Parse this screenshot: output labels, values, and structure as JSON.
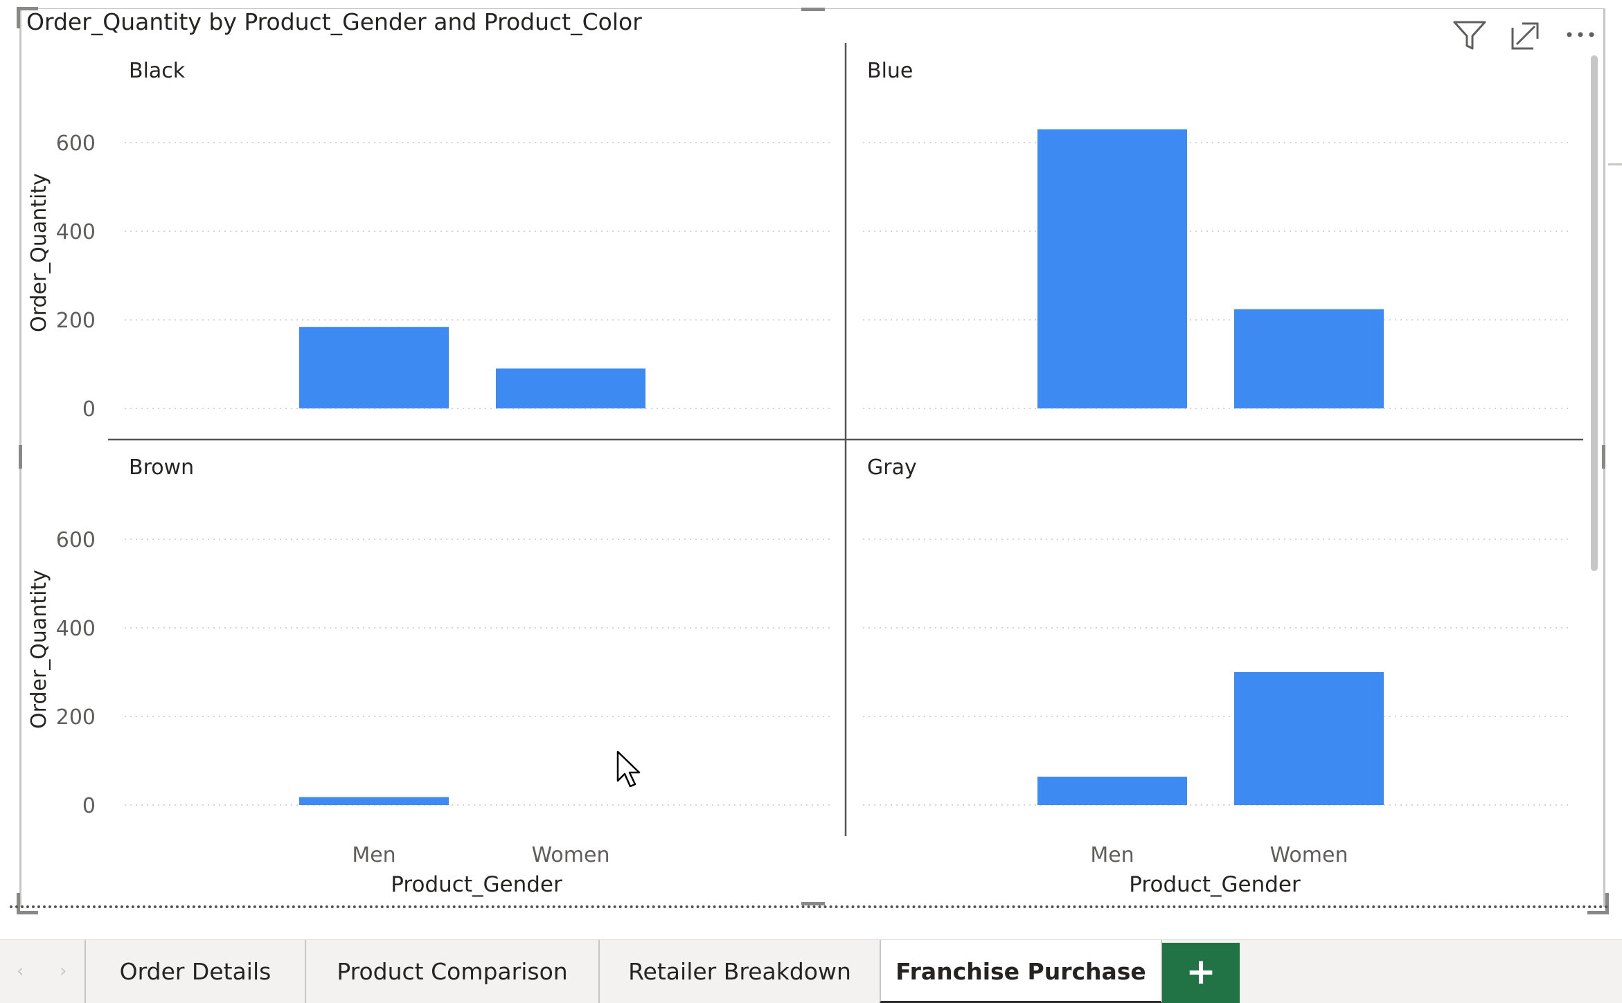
{
  "chart_data": {
    "type": "bar",
    "title": "Order_Quantity by Product_Gender and Product_Color",
    "xlabel": "Product_Gender",
    "ylabel": "Order_Quantity",
    "categories": [
      "Men",
      "Women"
    ],
    "ylim": [
      0,
      600
    ],
    "yticks": [
      0,
      200,
      400,
      600
    ],
    "grid": true,
    "panels": [
      {
        "name": "Black",
        "values": [
          184,
          90
        ]
      },
      {
        "name": "Blue",
        "values": [
          630,
          224
        ]
      },
      {
        "name": "Brown",
        "values": [
          18,
          0
        ]
      },
      {
        "name": "Gray",
        "values": [
          64,
          300
        ]
      }
    ],
    "bar_color": "#3d8bf2"
  },
  "header_icons": [
    "filter-icon",
    "focus-mode-icon",
    "more-options-icon"
  ],
  "tabs": {
    "pages": [
      {
        "label": "Order Details",
        "active": false
      },
      {
        "label": "Product Comparison",
        "active": false
      },
      {
        "label": "Retailer Breakdown",
        "active": false
      },
      {
        "label": "Franchise Purchase",
        "active": true
      }
    ],
    "add_label": "+",
    "prev_arrow": "‹",
    "next_arrow": "›"
  }
}
